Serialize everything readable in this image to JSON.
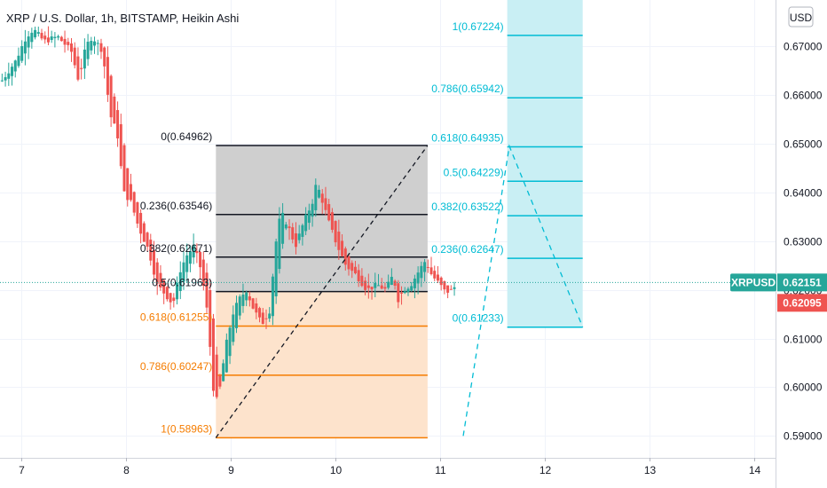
{
  "chart_data": {
    "type": "candlestick",
    "title": "XRP / U.S. Dollar, 1h, BITSTAMP, Heikin Ashi",
    "currency": "USD",
    "y_range": [
      0.5855,
      0.6795
    ],
    "x_range": [
      6.8,
      14.2
    ],
    "y_ticks": [
      "0.59000",
      "0.60000",
      "0.61000",
      "0.62000",
      "0.63000",
      "0.64000",
      "0.65000",
      "0.66000",
      "0.67000"
    ],
    "x_ticks": [
      "7",
      "8",
      "9",
      "10",
      "11",
      "12",
      "13",
      "14"
    ],
    "symbol_badge": {
      "label": "XRPUSD",
      "value": "0.62151"
    },
    "price_badge": {
      "value": "0.62095"
    },
    "last_price": 0.62151,
    "colors": {
      "up": "#26a69a",
      "down": "#ef5350",
      "fib_gray": "#a6a6a6",
      "fib_orange": "#f57c00",
      "fib_cyan": "#00bcd4",
      "badge_teal": "#26a69a",
      "badge_red": "#ef5350"
    },
    "fib_retracement": {
      "x_start": 8.86,
      "x_end": 10.88,
      "levels": [
        {
          "label": "0(0.64962)",
          "price": 0.64962,
          "color": "black"
        },
        {
          "label": "0.236(0.63546)",
          "price": 0.63546,
          "color": "black"
        },
        {
          "label": "0.382(0.62671)",
          "price": 0.62671,
          "color": "black"
        },
        {
          "label": "0.5(0.61963)",
          "price": 0.61963,
          "color": "black"
        },
        {
          "label": "0.618(0.61255)",
          "price": 0.61255,
          "color": "orange"
        },
        {
          "label": "0.786(0.60247)",
          "price": 0.60247,
          "color": "orange"
        },
        {
          "label": "1(0.58963)",
          "price": 0.58963,
          "color": "orange"
        }
      ]
    },
    "fib_extension": {
      "x_start": 11.64,
      "x_end": 12.36,
      "levels": [
        {
          "label": "1(0.67224)",
          "price": 0.67224
        },
        {
          "label": "0.786(0.65942)",
          "price": 0.65942
        },
        {
          "label": "0.618(0.64935)",
          "price": 0.64935
        },
        {
          "label": "0.5(0.64229)",
          "price": 0.64229
        },
        {
          "label": "0.382(0.63522)",
          "price": 0.63522
        },
        {
          "label": "0.236(0.62647)",
          "price": 0.62647
        },
        {
          "label": "0(0.61233)",
          "price": 0.61233
        }
      ]
    },
    "trend_line": [
      [
        8.86,
        0.58963
      ],
      [
        10.88,
        0.64962
      ]
    ],
    "projection_path": [
      [
        11.22,
        0.59
      ],
      [
        11.66,
        0.6495
      ],
      [
        12.36,
        0.61233
      ]
    ],
    "waypoints": [
      [
        6.82,
        0.663
      ],
      [
        6.95,
        0.667
      ],
      [
        7.05,
        0.672
      ],
      [
        7.12,
        0.6735
      ],
      [
        7.22,
        0.671
      ],
      [
        7.35,
        0.672
      ],
      [
        7.48,
        0.669
      ],
      [
        7.55,
        0.663
      ],
      [
        7.62,
        0.67
      ],
      [
        7.68,
        0.672
      ],
      [
        7.78,
        0.669
      ],
      [
        7.85,
        0.656
      ],
      [
        7.92,
        0.652
      ],
      [
        7.98,
        0.64
      ],
      [
        8.05,
        0.638
      ],
      [
        8.12,
        0.633
      ],
      [
        8.22,
        0.628
      ],
      [
        8.3,
        0.621
      ],
      [
        8.38,
        0.619
      ],
      [
        8.45,
        0.617
      ],
      [
        8.52,
        0.624
      ],
      [
        8.58,
        0.627
      ],
      [
        8.65,
        0.629
      ],
      [
        8.72,
        0.624
      ],
      [
        8.78,
        0.615
      ],
      [
        8.85,
        0.596
      ],
      [
        8.9,
        0.6
      ],
      [
        8.95,
        0.608
      ],
      [
        9.02,
        0.615
      ],
      [
        9.08,
        0.618
      ],
      [
        9.15,
        0.62
      ],
      [
        9.22,
        0.616
      ],
      [
        9.3,
        0.613
      ],
      [
        9.38,
        0.616
      ],
      [
        9.42,
        0.628
      ],
      [
        9.48,
        0.636
      ],
      [
        9.55,
        0.633
      ],
      [
        9.62,
        0.629
      ],
      [
        9.7,
        0.634
      ],
      [
        9.78,
        0.638
      ],
      [
        9.82,
        0.642
      ],
      [
        9.88,
        0.638
      ],
      [
        9.95,
        0.633
      ],
      [
        10.02,
        0.629
      ],
      [
        10.1,
        0.625
      ],
      [
        10.2,
        0.623
      ],
      [
        10.3,
        0.62
      ],
      [
        10.4,
        0.621
      ],
      [
        10.48,
        0.62
      ],
      [
        10.55,
        0.623
      ],
      [
        10.6,
        0.618
      ],
      [
        10.65,
        0.62
      ],
      [
        10.72,
        0.621
      ],
      [
        10.8,
        0.624
      ],
      [
        10.86,
        0.626
      ],
      [
        10.92,
        0.623
      ],
      [
        11.0,
        0.621
      ],
      [
        11.05,
        0.6195
      ],
      [
        11.12,
        0.62
      ],
      [
        11.15,
        0.621
      ]
    ]
  }
}
